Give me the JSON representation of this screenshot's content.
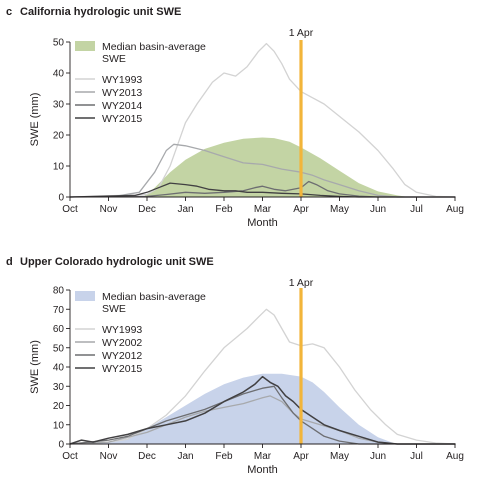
{
  "chart_data": [
    {
      "type": "line",
      "panel_letter": "c",
      "title": "California hydrologic unit SWE",
      "xlabel": "Month",
      "ylabel": "SWE (mm)",
      "x_ticks": [
        "Oct",
        "Nov",
        "Dec",
        "Jan",
        "Feb",
        "Mar",
        "Apr",
        "May",
        "Jun",
        "Jul",
        "Aug"
      ],
      "y_ticks": [
        0,
        10,
        20,
        30,
        40,
        50
      ],
      "ylim": [
        0,
        50
      ],
      "xlim": [
        0,
        10
      ],
      "reference_line": {
        "label": "1 Apr",
        "x": 6,
        "color": "#f2b53a"
      },
      "legend_position": "top-left",
      "grid": false,
      "area": {
        "name": "Median basin-average SWE",
        "color": "#c3d4a4",
        "points": [
          [
            1.9,
            0
          ],
          [
            2.2,
            3
          ],
          [
            2.6,
            8
          ],
          [
            3.0,
            12
          ],
          [
            3.5,
            15.5
          ],
          [
            4.0,
            17.5
          ],
          [
            4.5,
            18.8
          ],
          [
            5.0,
            19.2
          ],
          [
            5.3,
            19
          ],
          [
            5.7,
            17.8
          ],
          [
            6.0,
            16
          ],
          [
            6.5,
            12.5
          ],
          [
            7.0,
            8.5
          ],
          [
            7.5,
            4.5
          ],
          [
            8.0,
            1.8
          ],
          [
            8.5,
            0.5
          ],
          [
            8.8,
            0
          ]
        ]
      },
      "series": [
        {
          "name": "WY1993",
          "color": "#d3d3d3",
          "width": 1.3,
          "points": [
            [
              0,
              0
            ],
            [
              1,
              0.4
            ],
            [
              2,
              0.8
            ],
            [
              2.3,
              3
            ],
            [
              2.6,
              10
            ],
            [
              2.8,
              17
            ],
            [
              3.0,
              24
            ],
            [
              3.3,
              30
            ],
            [
              3.7,
              37
            ],
            [
              4.0,
              40
            ],
            [
              4.3,
              39
            ],
            [
              4.6,
              42
            ],
            [
              4.9,
              47
            ],
            [
              5.1,
              49.5
            ],
            [
              5.3,
              47
            ],
            [
              5.5,
              43
            ],
            [
              5.7,
              38
            ],
            [
              6.0,
              34
            ],
            [
              6.3,
              32
            ],
            [
              6.6,
              30
            ],
            [
              7.0,
              26
            ],
            [
              7.5,
              21
            ],
            [
              8.0,
              15
            ],
            [
              8.4,
              9
            ],
            [
              8.7,
              4
            ],
            [
              9.0,
              1.5
            ],
            [
              9.5,
              0.2
            ],
            [
              10,
              0
            ]
          ]
        },
        {
          "name": "WY2013",
          "color": "#a7a9ac",
          "width": 1.3,
          "points": [
            [
              0,
              0
            ],
            [
              1.2,
              0.3
            ],
            [
              1.8,
              1.5
            ],
            [
              2.2,
              8
            ],
            [
              2.5,
              15
            ],
            [
              2.7,
              17
            ],
            [
              3.0,
              16.5
            ],
            [
              3.5,
              15
            ],
            [
              4.0,
              13
            ],
            [
              4.5,
              11
            ],
            [
              5.0,
              10.5
            ],
            [
              5.5,
              9
            ],
            [
              6.0,
              8
            ],
            [
              6.3,
              7
            ],
            [
              6.6,
              5.5
            ],
            [
              7.0,
              4
            ],
            [
              7.5,
              2
            ],
            [
              8.0,
              0.5
            ],
            [
              8.5,
              0
            ],
            [
              10,
              0
            ]
          ]
        },
        {
          "name": "WY2014",
          "color": "#6d6e71",
          "width": 1.3,
          "points": [
            [
              0,
              0
            ],
            [
              2,
              0.2
            ],
            [
              2.5,
              0.8
            ],
            [
              3.0,
              1.5
            ],
            [
              3.5,
              1.2
            ],
            [
              4.0,
              1.5
            ],
            [
              4.5,
              2
            ],
            [
              4.8,
              3
            ],
            [
              5.0,
              3.5
            ],
            [
              5.3,
              2.5
            ],
            [
              5.6,
              2
            ],
            [
              6.0,
              3
            ],
            [
              6.2,
              5
            ],
            [
              6.4,
              4
            ],
            [
              6.7,
              2
            ],
            [
              7.0,
              1
            ],
            [
              7.5,
              0.3
            ],
            [
              8.0,
              0
            ],
            [
              10,
              0
            ]
          ]
        },
        {
          "name": "WY2015",
          "color": "#414042",
          "width": 1.3,
          "points": [
            [
              0,
              0
            ],
            [
              1.7,
              0.5
            ],
            [
              2.0,
              1.5
            ],
            [
              2.3,
              3
            ],
            [
              2.6,
              4.5
            ],
            [
              3.0,
              4
            ],
            [
              3.3,
              3.5
            ],
            [
              3.6,
              2.5
            ],
            [
              4.0,
              2
            ],
            [
              4.3,
              2
            ],
            [
              4.6,
              1.5
            ],
            [
              5.0,
              1.5
            ],
            [
              5.5,
              1.2
            ],
            [
              6.0,
              1
            ],
            [
              6.5,
              0.5
            ],
            [
              7.0,
              0.2
            ],
            [
              7.5,
              0
            ],
            [
              10,
              0
            ]
          ]
        }
      ]
    },
    {
      "type": "line",
      "panel_letter": "d",
      "title": "Upper Colorado hydrologic unit SWE",
      "xlabel": "Month",
      "ylabel": "SWE (mm)",
      "x_ticks": [
        "Oct",
        "Nov",
        "Dec",
        "Jan",
        "Feb",
        "Mar",
        "Apr",
        "May",
        "Jun",
        "Jul",
        "Aug"
      ],
      "y_ticks": [
        0,
        10,
        20,
        30,
        40,
        50,
        60,
        70,
        80
      ],
      "ylim": [
        0,
        80
      ],
      "xlim": [
        0,
        10
      ],
      "reference_line": {
        "label": "1 Apr",
        "x": 6,
        "color": "#f2b53a"
      },
      "legend_position": "top-left",
      "grid": false,
      "area": {
        "name": "Median basin-average SWE",
        "color": "#c8d3ea",
        "points": [
          [
            0.5,
            0
          ],
          [
            1.0,
            1
          ],
          [
            1.5,
            3
          ],
          [
            2.0,
            8
          ],
          [
            2.5,
            14
          ],
          [
            3.0,
            20
          ],
          [
            3.5,
            26
          ],
          [
            4.0,
            31
          ],
          [
            4.5,
            34.5
          ],
          [
            5.0,
            36.5
          ],
          [
            5.5,
            36.5
          ],
          [
            6.0,
            35
          ],
          [
            6.3,
            32
          ],
          [
            6.6,
            27
          ],
          [
            7.0,
            19
          ],
          [
            7.5,
            10
          ],
          [
            8.0,
            3.5
          ],
          [
            8.4,
            0.5
          ],
          [
            8.6,
            0
          ]
        ]
      },
      "series": [
        {
          "name": "WY1993",
          "color": "#d3d3d3",
          "width": 1.3,
          "points": [
            [
              0,
              0
            ],
            [
              1,
              1
            ],
            [
              1.5,
              2.5
            ],
            [
              2.0,
              8
            ],
            [
              2.5,
              15
            ],
            [
              3.0,
              25
            ],
            [
              3.5,
              38
            ],
            [
              4.0,
              50
            ],
            [
              4.3,
              55
            ],
            [
              4.6,
              60
            ],
            [
              4.9,
              66
            ],
            [
              5.1,
              70
            ],
            [
              5.3,
              67
            ],
            [
              5.5,
              60
            ],
            [
              5.7,
              53
            ],
            [
              6.0,
              51
            ],
            [
              6.3,
              52
            ],
            [
              6.6,
              50
            ],
            [
              7.0,
              40
            ],
            [
              7.4,
              28
            ],
            [
              7.8,
              18
            ],
            [
              8.2,
              10
            ],
            [
              8.5,
              5
            ],
            [
              9.0,
              2
            ],
            [
              9.5,
              0.5
            ],
            [
              10,
              0
            ]
          ]
        },
        {
          "name": "WY2002",
          "color": "#a7a9ac",
          "width": 1.3,
          "points": [
            [
              0,
              0
            ],
            [
              1,
              1
            ],
            [
              2.0,
              6
            ],
            [
              3.0,
              14
            ],
            [
              3.5,
              17
            ],
            [
              4.0,
              19
            ],
            [
              4.5,
              21
            ],
            [
              5.0,
              24
            ],
            [
              5.2,
              25
            ],
            [
              5.5,
              22
            ],
            [
              5.8,
              16
            ],
            [
              6.0,
              13
            ],
            [
              6.5,
              10
            ],
            [
              7.0,
              7
            ],
            [
              7.5,
              3
            ],
            [
              8.0,
              1
            ],
            [
              8.5,
              0
            ],
            [
              10,
              0
            ]
          ]
        },
        {
          "name": "WY2012",
          "color": "#6d6e71",
          "width": 1.3,
          "points": [
            [
              0,
              0
            ],
            [
              0.5,
              1
            ],
            [
              1,
              2
            ],
            [
              1.5,
              4
            ],
            [
              2.0,
              8
            ],
            [
              2.5,
              12
            ],
            [
              3.0,
              15
            ],
            [
              3.5,
              18
            ],
            [
              4.0,
              22
            ],
            [
              4.5,
              26
            ],
            [
              5.0,
              29
            ],
            [
              5.3,
              30
            ],
            [
              5.5,
              24
            ],
            [
              5.8,
              16
            ],
            [
              6.0,
              12
            ],
            [
              6.3,
              8
            ],
            [
              6.6,
              4
            ],
            [
              7.0,
              1.5
            ],
            [
              7.5,
              0
            ],
            [
              10,
              0
            ]
          ]
        },
        {
          "name": "WY2015",
          "color": "#414042",
          "width": 1.5,
          "points": [
            [
              0,
              0
            ],
            [
              0.3,
              2
            ],
            [
              0.6,
              1
            ],
            [
              1.0,
              3
            ],
            [
              1.5,
              5
            ],
            [
              2.0,
              8
            ],
            [
              2.5,
              10
            ],
            [
              3.0,
              12
            ],
            [
              3.5,
              16
            ],
            [
              4.0,
              22
            ],
            [
              4.5,
              27
            ],
            [
              4.8,
              31
            ],
            [
              5.0,
              35
            ],
            [
              5.2,
              32
            ],
            [
              5.4,
              30
            ],
            [
              5.6,
              25
            ],
            [
              5.8,
              22
            ],
            [
              6.0,
              18
            ],
            [
              6.3,
              14
            ],
            [
              6.6,
              10
            ],
            [
              7.0,
              7
            ],
            [
              7.5,
              4
            ],
            [
              8.0,
              1
            ],
            [
              8.5,
              0
            ],
            [
              10,
              0
            ]
          ]
        }
      ]
    }
  ]
}
